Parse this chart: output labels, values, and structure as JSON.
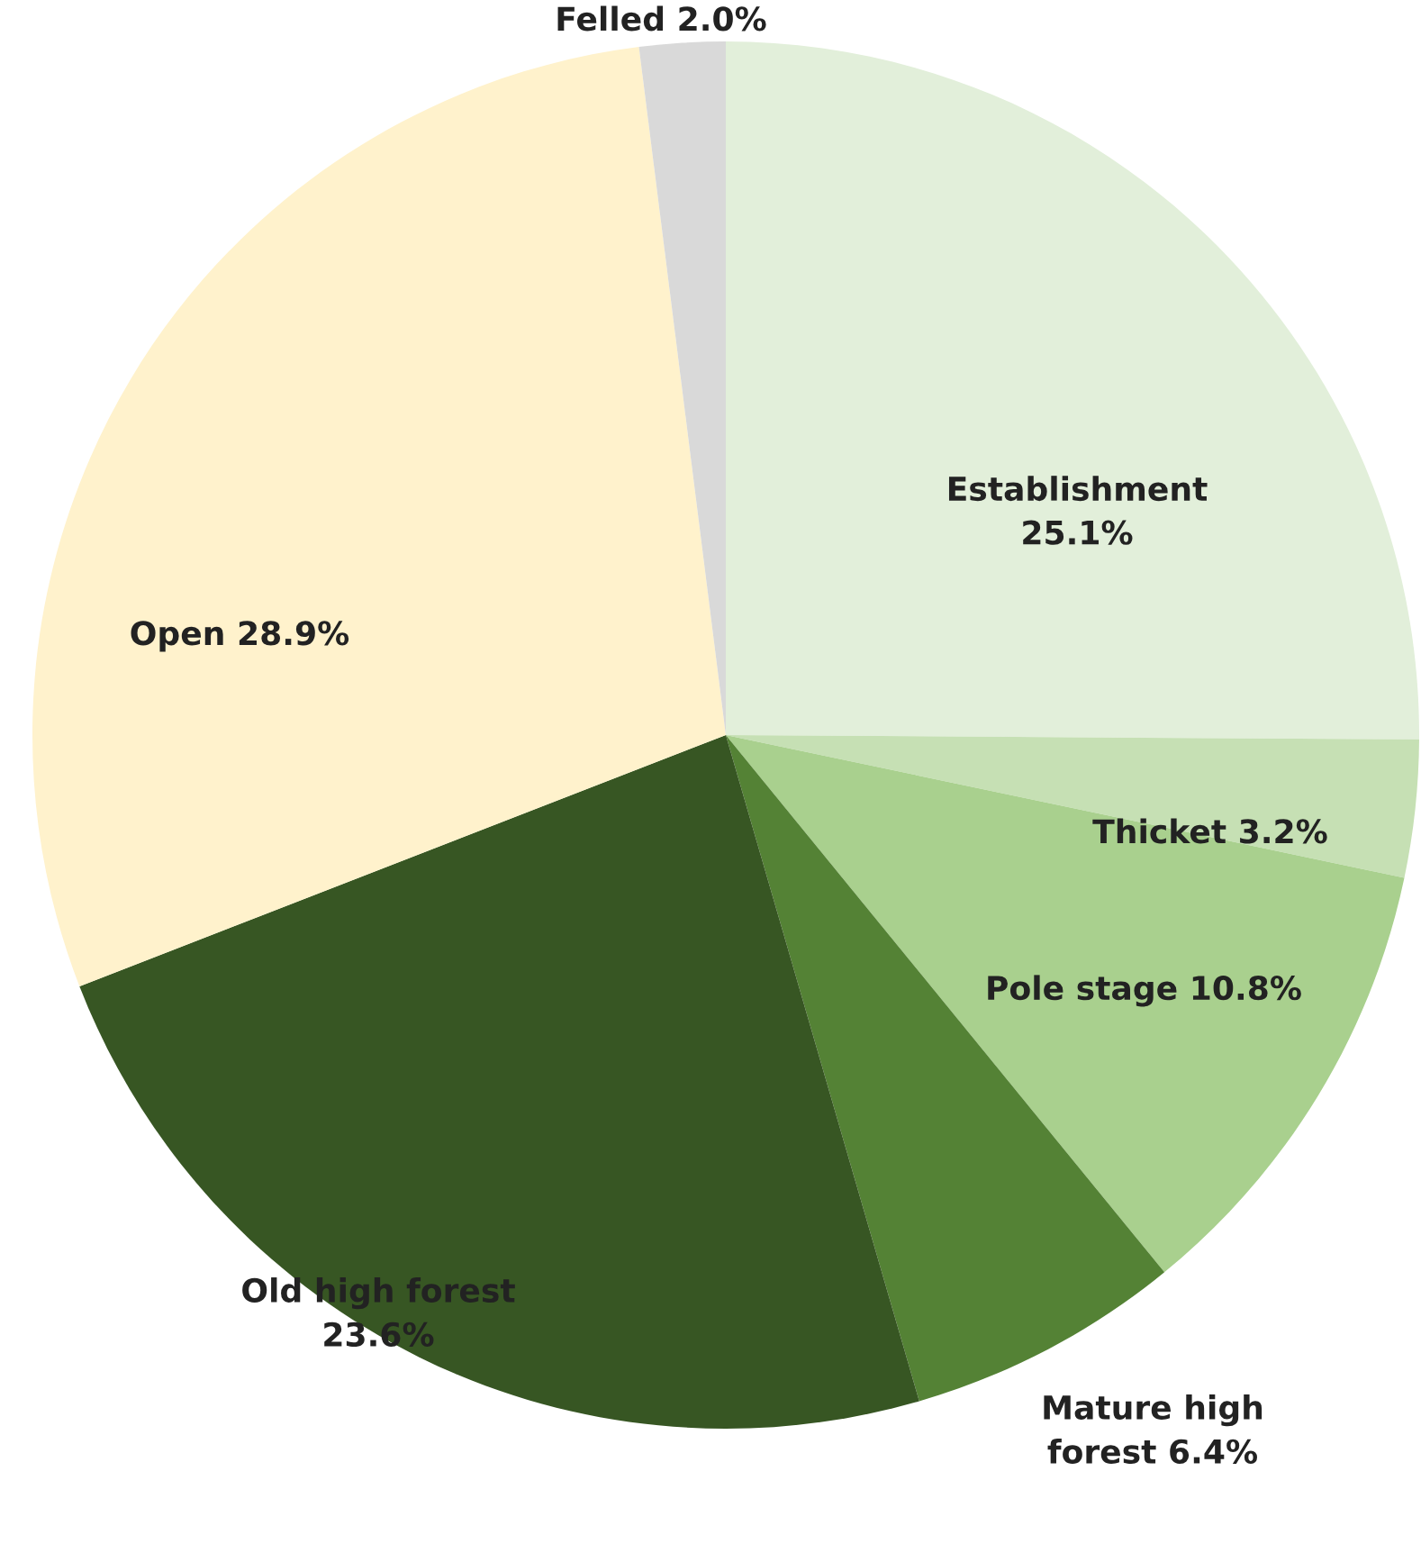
{
  "chart_data": {
    "type": "pie",
    "categories": [
      "Establishment",
      "Thicket",
      "Pole stage",
      "Mature high forest",
      "Old high forest",
      "Open",
      "Felled"
    ],
    "values": [
      25.1,
      3.2,
      10.8,
      6.4,
      23.6,
      28.9,
      2.0
    ],
    "colors": [
      "#e2efda",
      "#c6e0b4",
      "#a9d08e",
      "#548235",
      "#375623",
      "#fff2cc",
      "#d9d9d9"
    ],
    "value_labels": [
      "25.1%",
      "3.2%",
      "10.8%",
      "6.4%",
      "23.6%",
      "28.9%",
      "2.0%"
    ]
  }
}
